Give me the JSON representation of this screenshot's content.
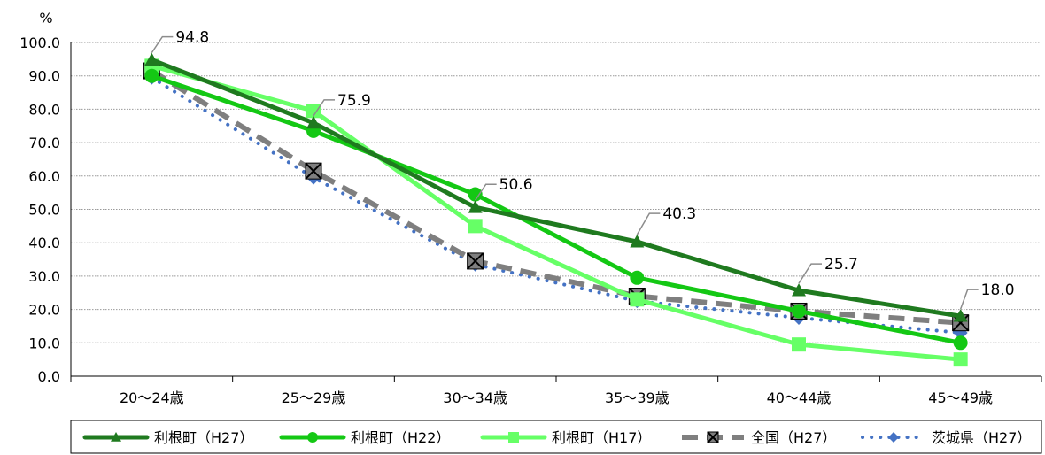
{
  "chart_data": {
    "type": "line",
    "y_unit": "%",
    "categories": [
      "20～24歳",
      "25～29歳",
      "30～34歳",
      "35～39歳",
      "40～44歳",
      "45～49歳"
    ],
    "ylim": [
      0,
      100
    ],
    "y_ticks": [
      "0.0",
      "10.0",
      "20.0",
      "30.0",
      "40.0",
      "50.0",
      "60.0",
      "70.0",
      "80.0",
      "90.0",
      "100.0"
    ],
    "grid": true,
    "legend_position": "bottom",
    "series": [
      {
        "name": "利根町（H27）",
        "values": [
          94.8,
          75.9,
          50.6,
          40.3,
          25.7,
          18.0
        ],
        "color": "#1f7a1f",
        "marker": "triangle",
        "style": "solid"
      },
      {
        "name": "利根町（H22）",
        "values": [
          90.0,
          73.5,
          54.5,
          29.5,
          19.5,
          10.0
        ],
        "color": "#14c814",
        "marker": "circle",
        "style": "solid"
      },
      {
        "name": "利根町（H17）",
        "values": [
          93.0,
          79.5,
          45.0,
          23.0,
          9.5,
          5.0
        ],
        "color": "#66ff66",
        "marker": "square",
        "style": "solid"
      },
      {
        "name": "全国（H27）",
        "values": [
          91.5,
          61.5,
          34.5,
          24.0,
          19.5,
          16.0
        ],
        "color": "#7f7f7f",
        "marker": "x-box",
        "style": "dashed"
      },
      {
        "name": "茨城県（H27）",
        "values": [
          89.5,
          59.5,
          33.5,
          22.5,
          17.5,
          13.0
        ],
        "color": "#4472c4",
        "marker": "diamond",
        "style": "dotted"
      }
    ],
    "data_labels": {
      "series": "利根町（H27）",
      "labels": [
        "94.8",
        "75.9",
        "50.6",
        "40.3",
        "25.7",
        "18.0"
      ]
    }
  }
}
